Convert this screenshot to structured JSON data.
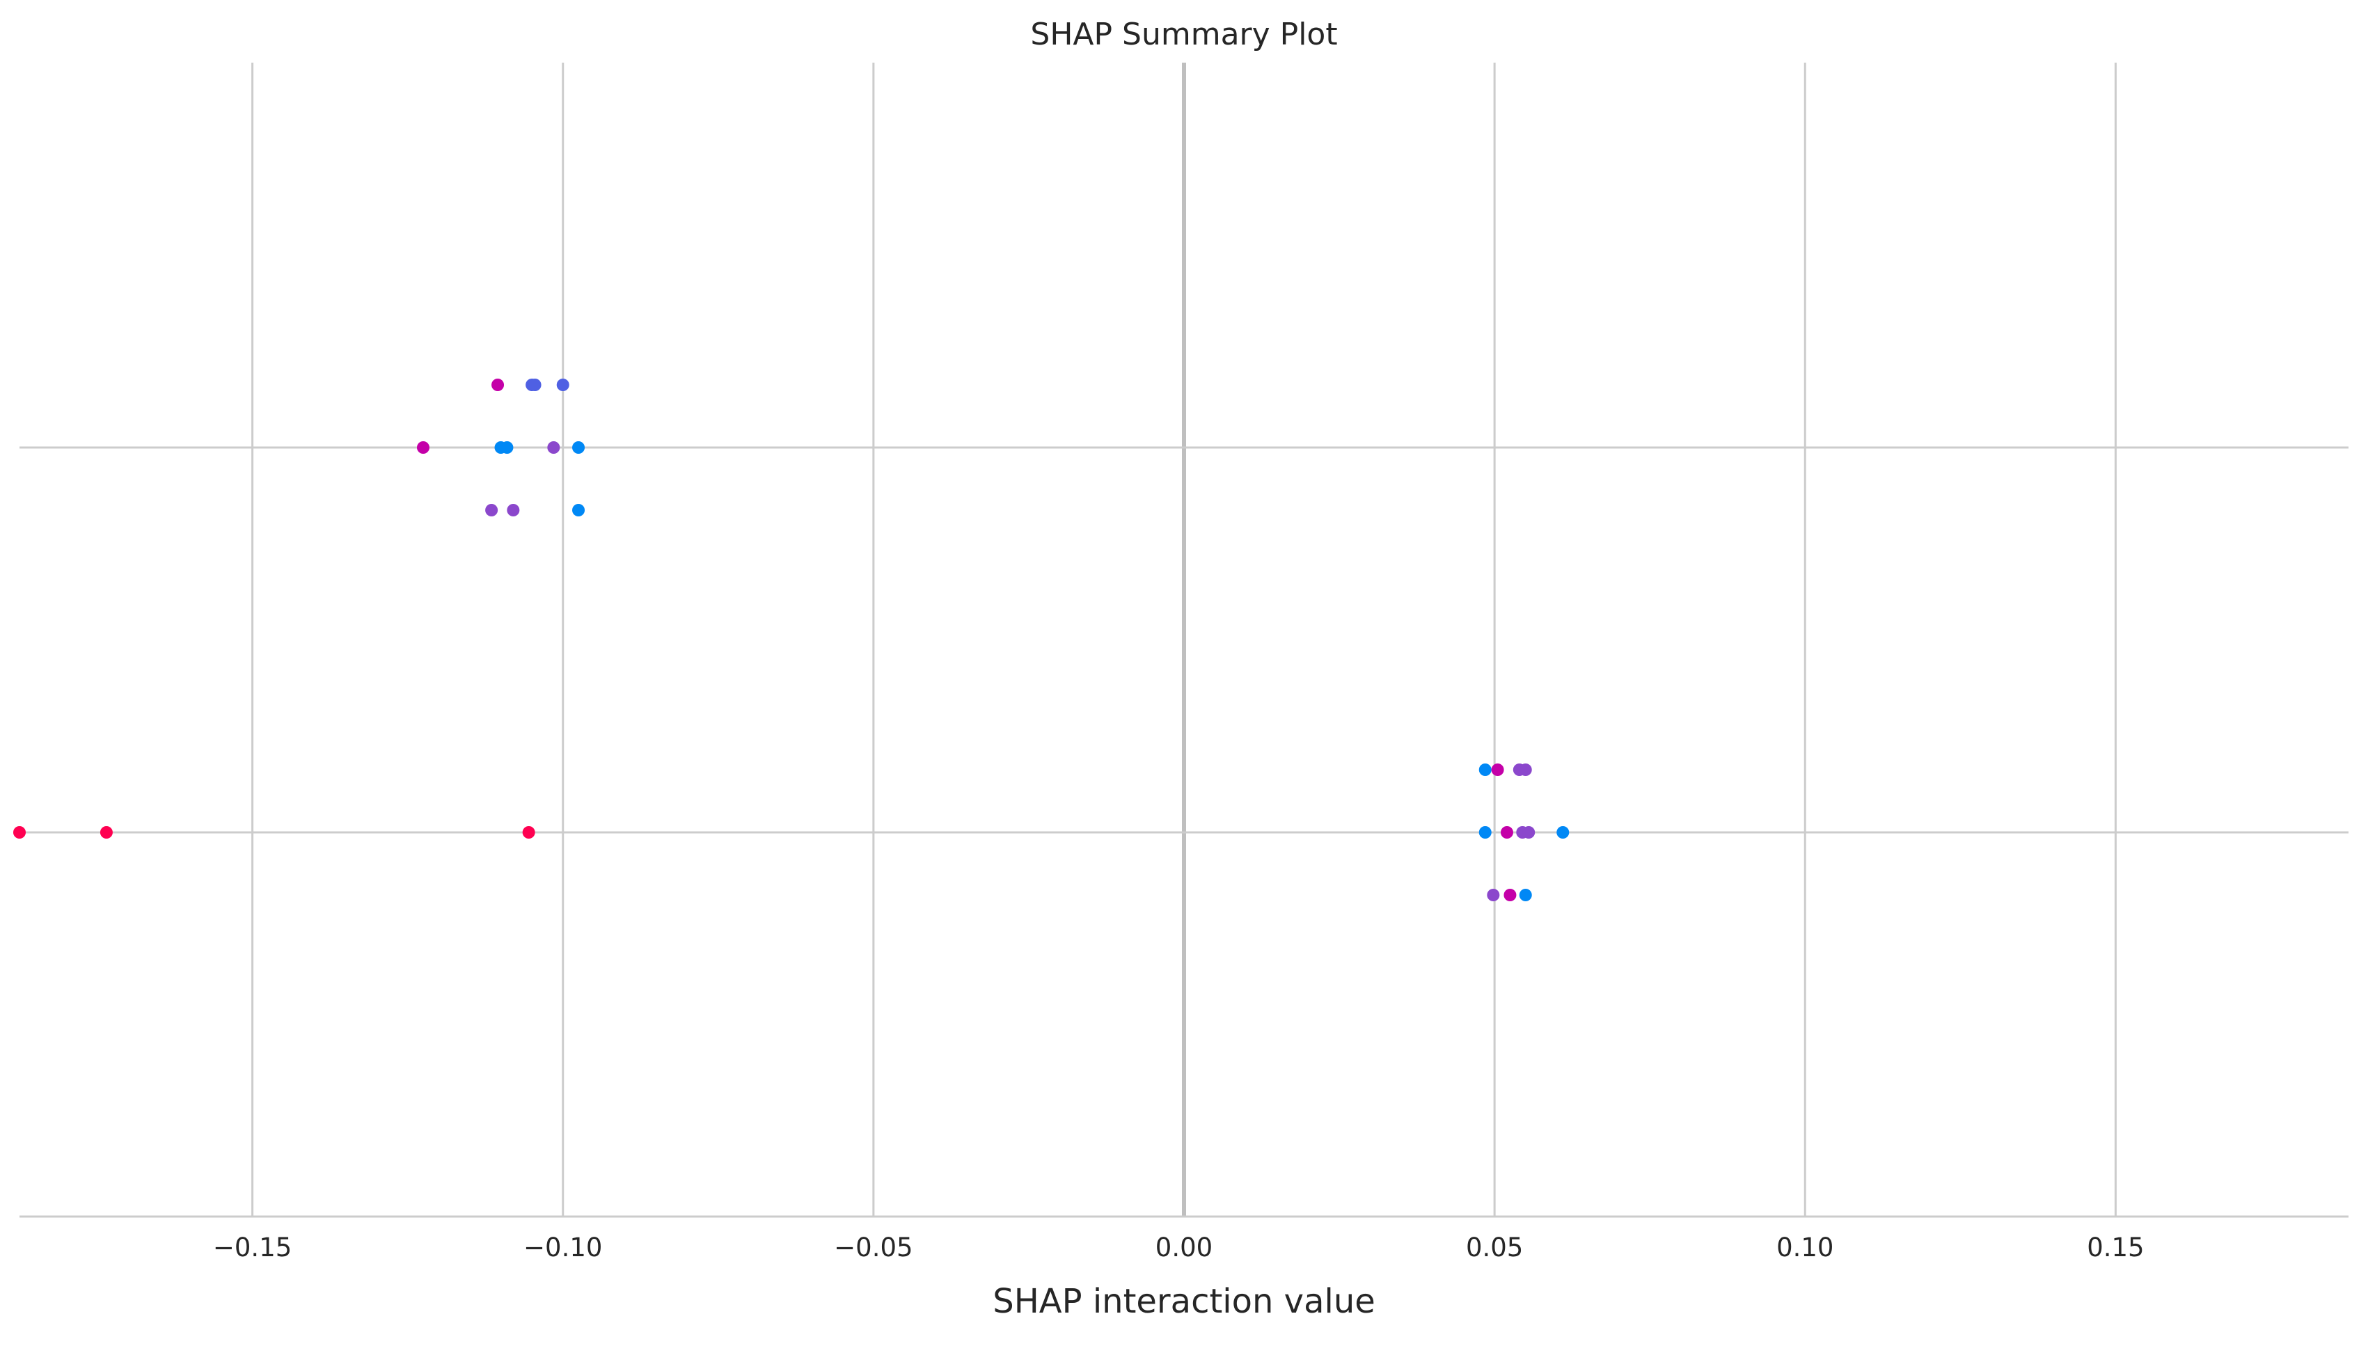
{
  "chart_data": {
    "type": "scatter",
    "title": "SHAP Summary Plot",
    "xlabel": "SHAP interaction value",
    "ylabel": "",
    "xlim": [
      -0.1875,
      0.1875
    ],
    "xticks": [
      -0.15,
      -0.1,
      -0.05,
      0.0,
      0.05,
      0.1,
      0.15
    ],
    "xtick_labels": [
      "−0.15",
      "−0.10",
      "−0.05",
      "0.00",
      "0.05",
      "0.10",
      "0.15"
    ],
    "grid": true,
    "legend": "none",
    "colors": {
      "blue": "#0088f5",
      "blue_purple": "#4f60e3",
      "purple": "#8b47cc",
      "magenta": "#c400a8",
      "red": "#ff0051"
    },
    "rows": [
      {
        "row": 1,
        "points": [
          {
            "x": -0.1105,
            "y": 0.9,
            "color": "magenta"
          },
          {
            "x": -0.105,
            "y": 0.9,
            "color": "blue_purple"
          },
          {
            "x": -0.1045,
            "y": 0.9,
            "color": "blue_purple"
          },
          {
            "x": -0.1,
            "y": 0.9,
            "color": "blue_purple"
          },
          {
            "x": -0.1225,
            "y": 0.0,
            "color": "magenta"
          },
          {
            "x": -0.11,
            "y": 0.0,
            "color": "blue"
          },
          {
            "x": -0.109,
            "y": 0.0,
            "color": "blue"
          },
          {
            "x": -0.1015,
            "y": 0.0,
            "color": "purple"
          },
          {
            "x": -0.0975,
            "y": 0.0,
            "color": "blue"
          },
          {
            "x": -0.1115,
            "y": -0.9,
            "color": "purple"
          },
          {
            "x": -0.108,
            "y": -0.9,
            "color": "purple"
          },
          {
            "x": -0.0975,
            "y": -0.9,
            "color": "blue"
          }
        ]
      },
      {
        "row": 0,
        "points": [
          {
            "x": 0.0485,
            "y": 0.9,
            "color": "blue"
          },
          {
            "x": 0.0505,
            "y": 0.9,
            "color": "magenta"
          },
          {
            "x": 0.054,
            "y": 0.9,
            "color": "purple"
          },
          {
            "x": 0.055,
            "y": 0.9,
            "color": "purple"
          },
          {
            "x": -0.1875,
            "y": 0.0,
            "color": "red"
          },
          {
            "x": -0.1735,
            "y": 0.0,
            "color": "red"
          },
          {
            "x": -0.1055,
            "y": 0.0,
            "color": "red"
          },
          {
            "x": 0.0485,
            "y": 0.0,
            "color": "blue"
          },
          {
            "x": 0.052,
            "y": 0.0,
            "color": "magenta"
          },
          {
            "x": 0.0545,
            "y": 0.0,
            "color": "purple"
          },
          {
            "x": 0.0555,
            "y": 0.0,
            "color": "purple"
          },
          {
            "x": 0.061,
            "y": 0.0,
            "color": "blue"
          },
          {
            "x": 0.0498,
            "y": -0.9,
            "color": "purple"
          },
          {
            "x": 0.0525,
            "y": -0.9,
            "color": "magenta"
          },
          {
            "x": 0.055,
            "y": -0.9,
            "color": "blue"
          }
        ]
      }
    ]
  }
}
